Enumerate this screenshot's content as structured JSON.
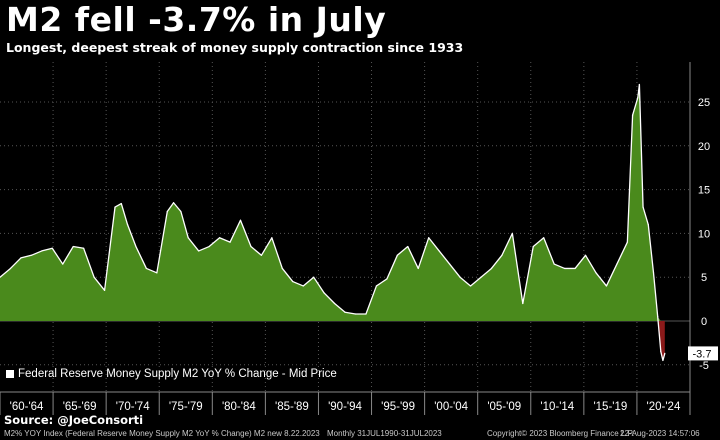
{
  "title": "M2 fell -3.7% in July",
  "subtitle": "Longest, deepest streak of money supply contraction since 1933",
  "source": "Source: @JoeConsorti",
  "footer": {
    "index_desc": "M2% YOY Index (Federal Reserve Money Supply M2 YoY % Change) M2 new 8.22.2023",
    "range": "Monthly 31JUL1990-31JUL2023",
    "copyright": "Copyright© 2023 Bloomberg Finance L.P.",
    "timestamp": "22-Aug-2023 14:57:06"
  },
  "colors": {
    "positive_fill": "#4a8a1c",
    "negative_fill": "#8b1a1a",
    "line": "#ffffff",
    "background": "#000000",
    "grid": "#555555"
  },
  "chart_data": {
    "type": "area",
    "series": [
      {
        "name": "Federal Reserve Money Supply M2 YoY % Change - Mid Price",
        "points": [
          [
            1960.0,
            5.0
          ],
          [
            1961.0,
            6.0
          ],
          [
            1962.0,
            7.2
          ],
          [
            1963.0,
            7.5
          ],
          [
            1964.0,
            8.0
          ],
          [
            1965.0,
            8.3
          ],
          [
            1966.0,
            6.5
          ],
          [
            1967.0,
            8.5
          ],
          [
            1968.0,
            8.3
          ],
          [
            1969.0,
            5.0
          ],
          [
            1970.0,
            3.5
          ],
          [
            1971.0,
            13.0
          ],
          [
            1971.6,
            13.4
          ],
          [
            1972.2,
            11.0
          ],
          [
            1973.0,
            8.5
          ],
          [
            1974.0,
            6.0
          ],
          [
            1975.0,
            5.5
          ],
          [
            1976.0,
            12.5
          ],
          [
            1976.6,
            13.5
          ],
          [
            1977.3,
            12.5
          ],
          [
            1978.0,
            9.5
          ],
          [
            1979.0,
            8.0
          ],
          [
            1980.0,
            8.5
          ],
          [
            1981.0,
            9.5
          ],
          [
            1982.0,
            9.0
          ],
          [
            1983.0,
            11.5
          ],
          [
            1984.0,
            8.5
          ],
          [
            1985.0,
            7.5
          ],
          [
            1986.0,
            9.5
          ],
          [
            1987.0,
            6.0
          ],
          [
            1988.0,
            4.5
          ],
          [
            1989.0,
            4.0
          ],
          [
            1990.0,
            5.0
          ],
          [
            1991.0,
            3.2
          ],
          [
            1992.0,
            2.0
          ],
          [
            1993.0,
            1.0
          ],
          [
            1994.0,
            0.8
          ],
          [
            1995.0,
            0.8
          ],
          [
            1996.0,
            4.0
          ],
          [
            1997.0,
            4.8
          ],
          [
            1998.0,
            7.5
          ],
          [
            1999.0,
            8.5
          ],
          [
            2000.0,
            6.0
          ],
          [
            2001.0,
            9.5
          ],
          [
            2002.0,
            8.0
          ],
          [
            2003.0,
            6.5
          ],
          [
            2004.0,
            5.0
          ],
          [
            2005.0,
            4.0
          ],
          [
            2006.0,
            5.0
          ],
          [
            2007.0,
            6.0
          ],
          [
            2008.0,
            7.5
          ],
          [
            2009.0,
            10.0
          ],
          [
            2010.0,
            2.0
          ],
          [
            2011.0,
            8.5
          ],
          [
            2012.0,
            9.5
          ],
          [
            2013.0,
            6.5
          ],
          [
            2014.0,
            6.0
          ],
          [
            2015.0,
            6.0
          ],
          [
            2016.0,
            7.5
          ],
          [
            2017.0,
            5.5
          ],
          [
            2018.0,
            4.0
          ],
          [
            2019.0,
            6.5
          ],
          [
            2020.0,
            9.0
          ],
          [
            2020.5,
            23.5
          ],
          [
            2021.0,
            25.5
          ],
          [
            2021.15,
            27.0
          ],
          [
            2021.5,
            13.0
          ],
          [
            2022.0,
            11.0
          ],
          [
            2022.5,
            5.5
          ],
          [
            2022.9,
            0.5
          ],
          [
            2023.2,
            -3.5
          ],
          [
            2023.4,
            -4.5
          ],
          [
            2023.58,
            -3.7
          ]
        ]
      }
    ],
    "x_ticks": [
      "'60-'64",
      "'65-'69",
      "'70-'74",
      "'75-'79",
      "'80-'84",
      "'85-'89",
      "'90-'94",
      "'95-'99",
      "'00-'04",
      "'05-'09",
      "'10-'14",
      "'15-'19",
      "'20-'24"
    ],
    "y_ticks": [
      -5,
      0,
      5,
      10,
      15,
      20,
      25
    ],
    "ylim": [
      -6,
      30
    ],
    "xlim": [
      1960,
      2025
    ],
    "last_value_label": "-3.7",
    "grid": true,
    "legend_position": "bottom-left"
  }
}
